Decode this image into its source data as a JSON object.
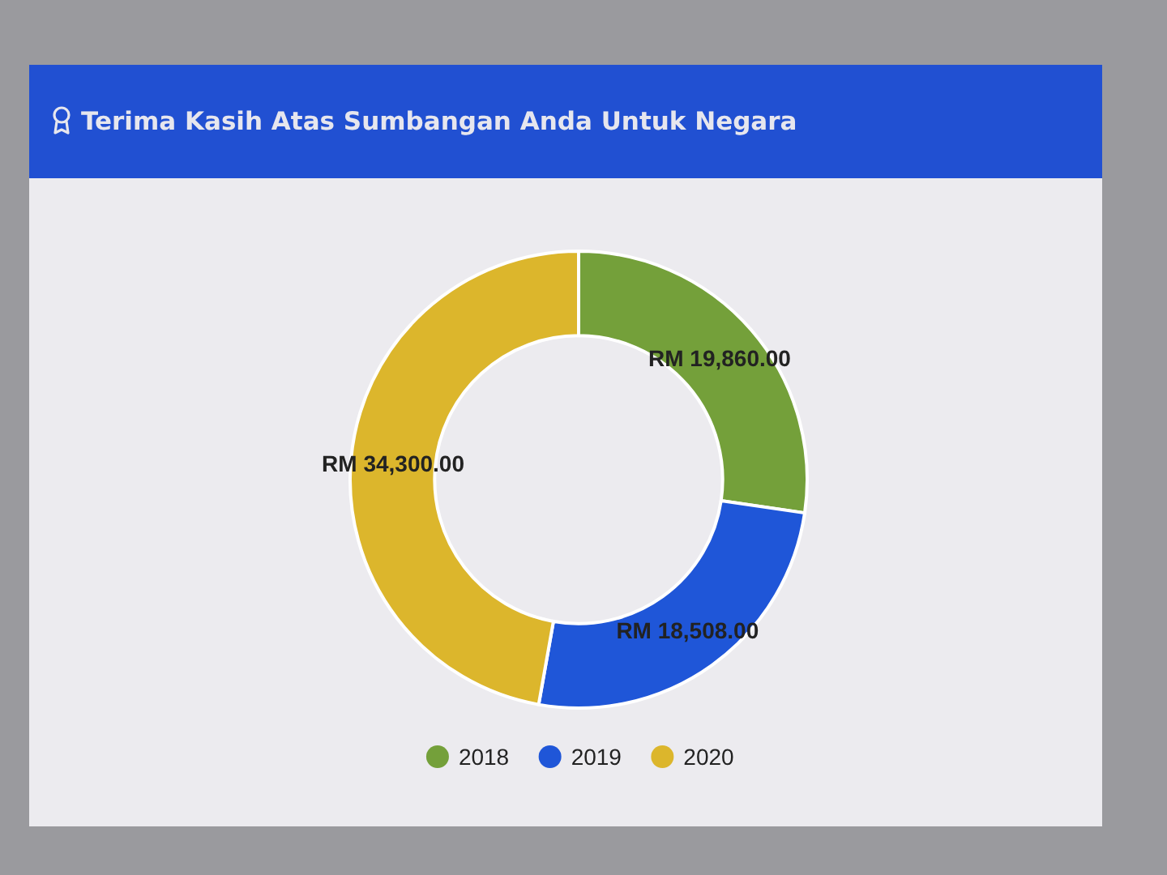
{
  "chart_data": {
    "type": "donut",
    "title": "Terima Kasih Atas Sumbangan Anda Untuk Negara",
    "categories": [
      "2018",
      "2019",
      "2020"
    ],
    "values": [
      19860,
      18508,
      34300
    ],
    "colors": [
      "#74a03a",
      "#1f56d8",
      "#dcb62c"
    ],
    "value_labels": [
      "RM 19,860.00",
      "RM 18,508.00",
      "RM 34,300.00"
    ],
    "legend": "bottom"
  }
}
